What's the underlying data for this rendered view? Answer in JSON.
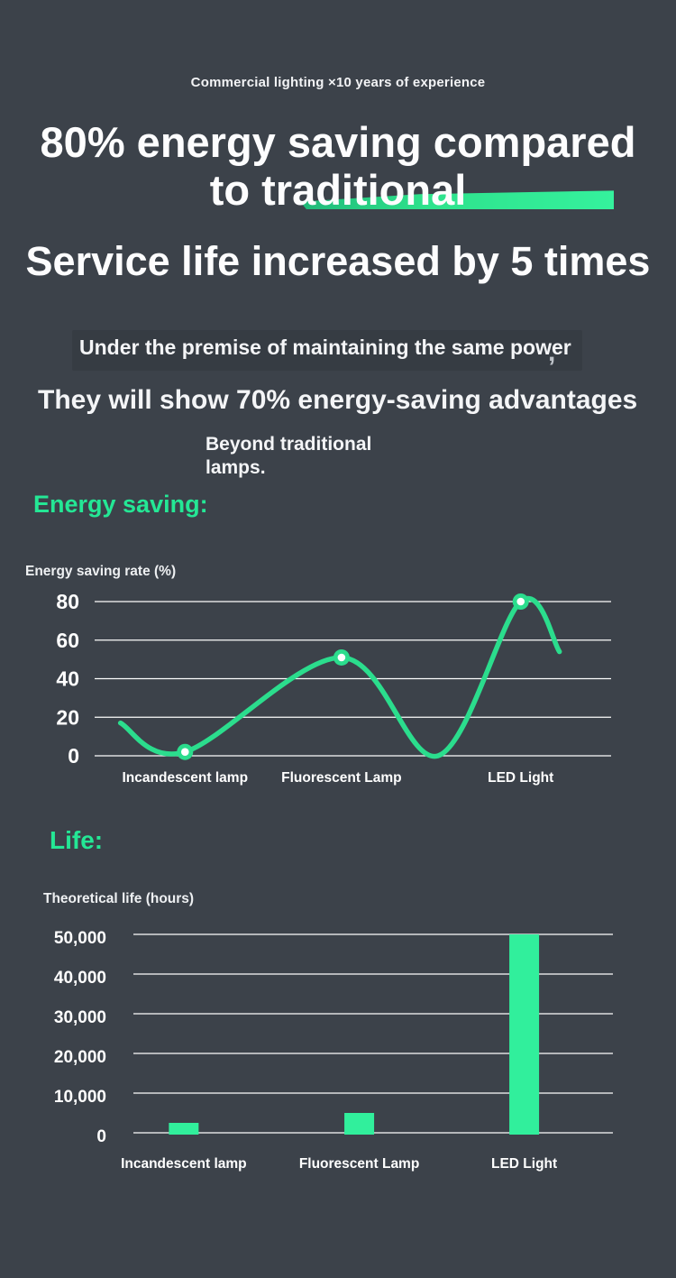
{
  "colors": {
    "background": "#3c424a",
    "accent_green": "#24e795",
    "line_green": "#2bdd8d",
    "bar_green": "#31ef9c",
    "highlight_green": "#2ee28c",
    "grid_white": "#fdfdfd"
  },
  "header": {
    "tagline": "Commercial lighting ×10 years of experience",
    "headline_line1": "80% energy saving compared",
    "headline_line2": "to traditional",
    "headline2": "Service life increased by 5 times",
    "premise_text": "Under the premise of maintaining the same power",
    "premise_comma": ",",
    "advantage_text": "They will show 70% energy-saving advantages",
    "beyond_text": "Beyond traditional lamps."
  },
  "sections": {
    "energy_heading": "Energy saving:",
    "life_heading": "Life:"
  },
  "chart_data": [
    {
      "type": "line",
      "title": "Energy saving rate (%)",
      "categories": [
        "Incandescent lamp",
        "Fluorescent Lamp",
        "LED Light"
      ],
      "values": [
        2,
        51,
        80
      ],
      "category_x": [
        0.175,
        0.478,
        0.825
      ],
      "curve_points": [
        {
          "x": 0.05,
          "v": 17
        },
        {
          "x": 0.175,
          "v": 2,
          "marker": true
        },
        {
          "x": 0.478,
          "v": 51,
          "marker": true
        },
        {
          "x": 0.665,
          "v": 0
        },
        {
          "x": 0.825,
          "v": 80,
          "marker": true
        },
        {
          "x": 0.9,
          "v": 54
        }
      ],
      "yticks": [
        0,
        20,
        40,
        60,
        80
      ],
      "ylim": [
        0,
        80
      ],
      "grid": true,
      "legend": false
    },
    {
      "type": "bar",
      "title": "Theoretical life (hours)",
      "categories": [
        "Incandescent lamp",
        "Fluorescent Lamp",
        "LED Light"
      ],
      "values": [
        2500,
        5000,
        50000
      ],
      "category_x": [
        0.105,
        0.471,
        0.815
      ],
      "yticks": [
        0,
        10000,
        20000,
        30000,
        40000,
        50000
      ],
      "ylim": [
        0,
        50000
      ],
      "grid": true,
      "legend": false
    }
  ]
}
